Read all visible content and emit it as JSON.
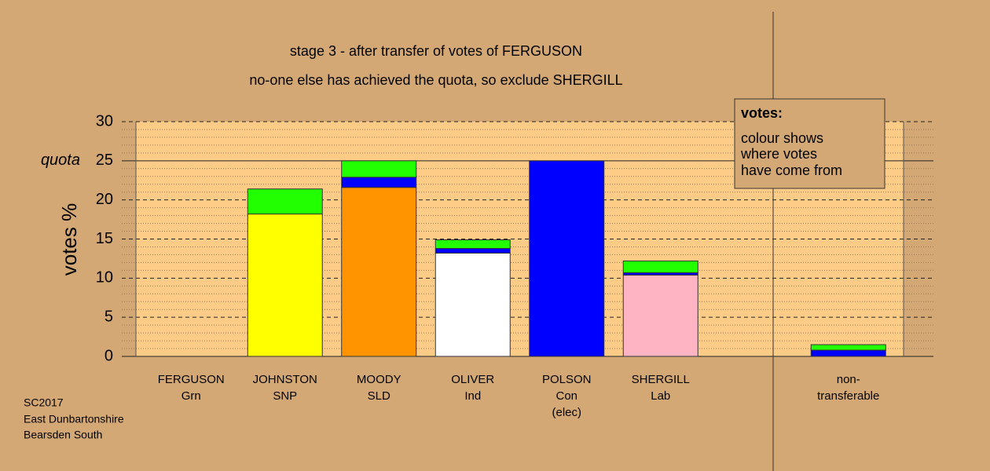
{
  "chart_data": {
    "type": "stacked_bar",
    "title": "stage 3 - after transfer of votes of FERGUSON",
    "subtitle": "no-one else has achieved the quota, so exclude SHERGILL",
    "y_label": "votes %",
    "categories": [
      [
        "FERGUSON",
        "Grn"
      ],
      [
        "JOHNSTON",
        "SNP"
      ],
      [
        "MOODY",
        "SLD"
      ],
      [
        "OLIVER",
        "Ind"
      ],
      [
        "POLSON",
        "Con",
        "(elec)"
      ],
      [
        "SHERGILL",
        "Lab"
      ],
      null,
      [
        "non-",
        "transferable"
      ]
    ],
    "series": [
      {
        "colors": [
          "#00a000",
          "#ffff00",
          "#ff9400",
          "#ffffff",
          "#0000ff",
          "#ffb4c4",
          null,
          null
        ],
        "values": [
          0,
          18.2,
          21.6,
          13.2,
          25.0,
          10.4,
          null,
          0
        ]
      },
      {
        "color": "#0000ff",
        "values": [
          0,
          0,
          1.3,
          0.6,
          0,
          0.3,
          null,
          0.8
        ]
      },
      {
        "color": "#22ff00",
        "values": [
          0,
          3.2,
          2.1,
          1.1,
          0,
          1.5,
          null,
          0.7
        ]
      }
    ],
    "ylim": [
      0,
      30
    ],
    "yticks": [
      0,
      5,
      10,
      15,
      20,
      25,
      30
    ],
    "minor_yticks": [
      1,
      2,
      3,
      4,
      6,
      7,
      8,
      9,
      11,
      12,
      13,
      14,
      16,
      17,
      18,
      19,
      21,
      22,
      23,
      24,
      26,
      27,
      28,
      29
    ],
    "quota": 25,
    "quota_label": "quota",
    "legend": {
      "title": "votes:",
      "lines": [
        "colour shows",
        "where votes",
        "have come from"
      ]
    },
    "footnote": [
      "SC2017",
      "East Dunbartonshire",
      "Bearsden South"
    ]
  }
}
